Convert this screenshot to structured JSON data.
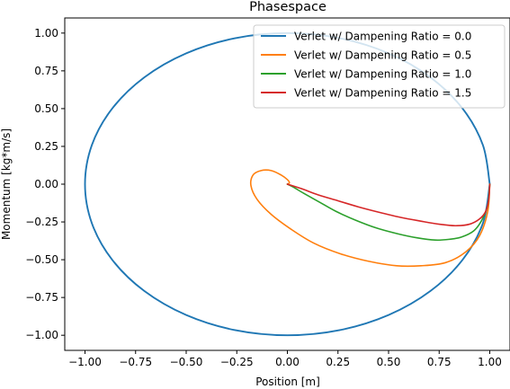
{
  "chart_data": {
    "type": "line",
    "title": "Phasespace",
    "xlabel": "Position [m]",
    "ylabel": "Momentum [kg*m/s]",
    "xlim": [
      -1.1,
      1.1
    ],
    "ylim": [
      -1.1,
      1.1
    ],
    "xticks": [
      -1.0,
      -0.75,
      -0.5,
      -0.25,
      0.0,
      0.25,
      0.5,
      0.75,
      1.0
    ],
    "xtick_labels": [
      "−1.00",
      "−0.75",
      "−0.50",
      "−0.25",
      "0.00",
      "0.25",
      "0.50",
      "0.75",
      "1.00"
    ],
    "yticks": [
      -1.0,
      -0.75,
      -0.5,
      -0.25,
      0.0,
      0.25,
      0.5,
      0.75,
      1.0
    ],
    "ytick_labels": [
      "−1.00",
      "−0.75",
      "−0.50",
      "−0.25",
      "0.00",
      "0.25",
      "0.50",
      "0.75",
      "1.00"
    ],
    "grid": false,
    "legend_position": "top-right",
    "series": [
      {
        "name": "Verlet w/ Dampening Ratio = 0.0",
        "color": "#1f77b4",
        "x": [
          1.0,
          0.966,
          0.866,
          0.707,
          0.5,
          0.259,
          0.0,
          -0.259,
          -0.5,
          -0.707,
          -0.866,
          -0.966,
          -1.0,
          -0.966,
          -0.866,
          -0.707,
          -0.5,
          -0.259,
          0.0,
          0.259,
          0.5,
          0.707,
          0.866,
          0.966,
          1.0
        ],
        "y": [
          0.0,
          -0.259,
          -0.5,
          -0.707,
          -0.866,
          -0.966,
          -1.0,
          -0.966,
          -0.866,
          -0.707,
          -0.5,
          -0.259,
          0.0,
          0.259,
          0.5,
          0.707,
          0.866,
          0.966,
          1.0,
          0.966,
          0.866,
          0.707,
          0.5,
          0.259,
          0.0
        ]
      },
      {
        "name": "Verlet w/ Dampening Ratio = 0.5",
        "color": "#ff7f0e",
        "x": [
          1.0,
          0.99,
          0.95,
          0.88,
          0.78,
          0.66,
          0.54,
          0.4,
          0.26,
          0.13,
          0.02,
          -0.08,
          -0.15,
          -0.18,
          -0.17,
          -0.13,
          -0.08,
          -0.03,
          0.0,
          0.01,
          0.0
        ],
        "y": [
          0.0,
          -0.18,
          -0.34,
          -0.45,
          -0.52,
          -0.54,
          -0.54,
          -0.51,
          -0.46,
          -0.39,
          -0.3,
          -0.2,
          -0.1,
          -0.01,
          0.06,
          0.09,
          0.09,
          0.06,
          0.03,
          0.01,
          0.0
        ]
      },
      {
        "name": "Verlet w/ Dampening Ratio = 1.0",
        "color": "#2ca02c",
        "x": [
          1.0,
          0.99,
          0.96,
          0.92,
          0.86,
          0.8,
          0.73,
          0.64,
          0.55,
          0.44,
          0.34,
          0.24,
          0.16,
          0.08,
          0.03,
          0.0
        ],
        "y": [
          0.0,
          -0.14,
          -0.24,
          -0.31,
          -0.35,
          -0.365,
          -0.37,
          -0.355,
          -0.33,
          -0.29,
          -0.24,
          -0.18,
          -0.12,
          -0.06,
          -0.02,
          0.0
        ]
      },
      {
        "name": "Verlet w/ Dampening Ratio = 1.5",
        "color": "#d62728",
        "x": [
          1.0,
          0.995,
          0.98,
          0.95,
          0.9,
          0.83,
          0.75,
          0.66,
          0.56,
          0.45,
          0.35,
          0.25,
          0.15,
          0.07,
          0.0
        ],
        "y": [
          0.0,
          -0.1,
          -0.18,
          -0.23,
          -0.265,
          -0.275,
          -0.265,
          -0.245,
          -0.22,
          -0.185,
          -0.15,
          -0.11,
          -0.07,
          -0.03,
          0.0
        ]
      }
    ]
  }
}
